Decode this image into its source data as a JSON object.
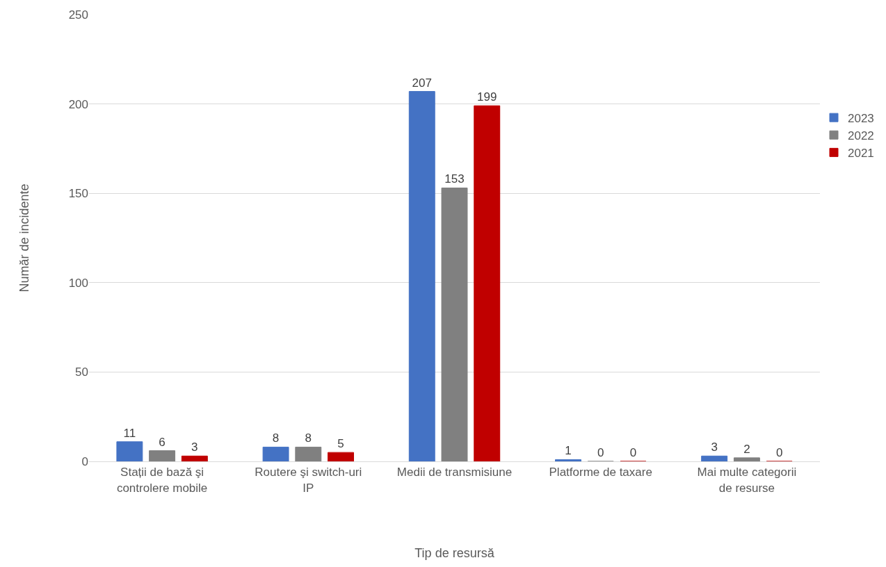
{
  "chart_data": {
    "type": "bar",
    "xlabel": "Tip de resursă",
    "ylabel": "Număr de incidente",
    "categories": [
      "Stații de bază şi controlere mobile",
      "Routere şi switch-uri IP",
      "Medii de transmisiune",
      "Platforme de taxare",
      "Mai multe categorii de resurse"
    ],
    "series": [
      {
        "name": "2023",
        "color": "#4472c4",
        "values": [
          11,
          8,
          207,
          1,
          3
        ]
      },
      {
        "name": "2022",
        "color": "#808080",
        "values": [
          6,
          8,
          153,
          0,
          2
        ]
      },
      {
        "name": "2021",
        "color": "#c00000",
        "values": [
          3,
          5,
          199,
          0,
          0
        ]
      }
    ],
    "ylim": [
      0,
      250
    ],
    "yticks": [
      0,
      50,
      100,
      150,
      200,
      250
    ],
    "grid": "y",
    "legend": "right",
    "data_labels": true
  }
}
